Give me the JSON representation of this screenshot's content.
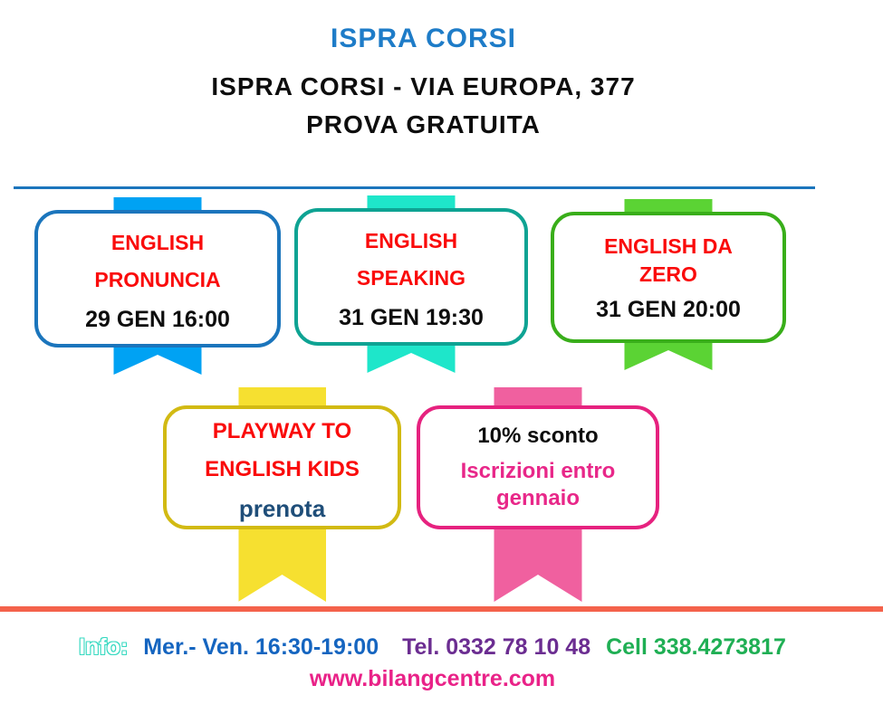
{
  "header": {
    "title": "ISPRA CORSI",
    "address_line": "ISPRA CORSI - VIA EUROPA, 377",
    "free_trial_line": "PROVA GRATUITA"
  },
  "cards": [
    {
      "name": "english-pronuncia",
      "line1": "ENGLISH",
      "line2": "PRONUNCIA",
      "date": "29 GEN 16:00",
      "border_color": "#1B75BC",
      "ribbon_color": "#00A2F3"
    },
    {
      "name": "english-speaking",
      "line1": "ENGLISH",
      "line2": "SPEAKING",
      "date": "31 GEN 19:30",
      "border_color": "#0EA393",
      "ribbon_color": "#1EE6CA"
    },
    {
      "name": "english-da-zero",
      "line1": "ENGLISH DA",
      "line2": "ZERO",
      "date": "31 GEN 20:00",
      "border_color": "#39AE1A",
      "ribbon_color": "#5BD334"
    },
    {
      "name": "playway-to-english-kids",
      "line1": "PLAYWAY TO",
      "line2": "ENGLISH KIDS",
      "action": "prenota",
      "border_color": "#D2BA13",
      "ribbon_color": "#F6E030"
    },
    {
      "name": "sconto-10",
      "line1": "10% sconto",
      "line2": "Iscrizioni entro",
      "line3": "gennaio",
      "border_color": "#E6227F",
      "ribbon_color": "#F0609F"
    }
  ],
  "footer": {
    "info_label": "Info:",
    "hours": "Mer.- Ven. 16:30-19:00",
    "tel": "Tel. 0332 78 10 48",
    "cell": "Cell 338.4273817",
    "website": "www.bilangcentre.com"
  },
  "colors": {
    "title_blue": "#1E7CC8",
    "divider_blue": "#1B75BC",
    "divider_red": "#F4624B",
    "course_red": "#FA0B0B",
    "prenota_blue": "#1F4E79",
    "promo_magenta": "#E82789",
    "info_turquoise": "#35D9C0",
    "hours_blue": "#1565C0",
    "tel_purple": "#6B2D91",
    "cell_green": "#1FAF54",
    "website_pink": "#E92288"
  }
}
